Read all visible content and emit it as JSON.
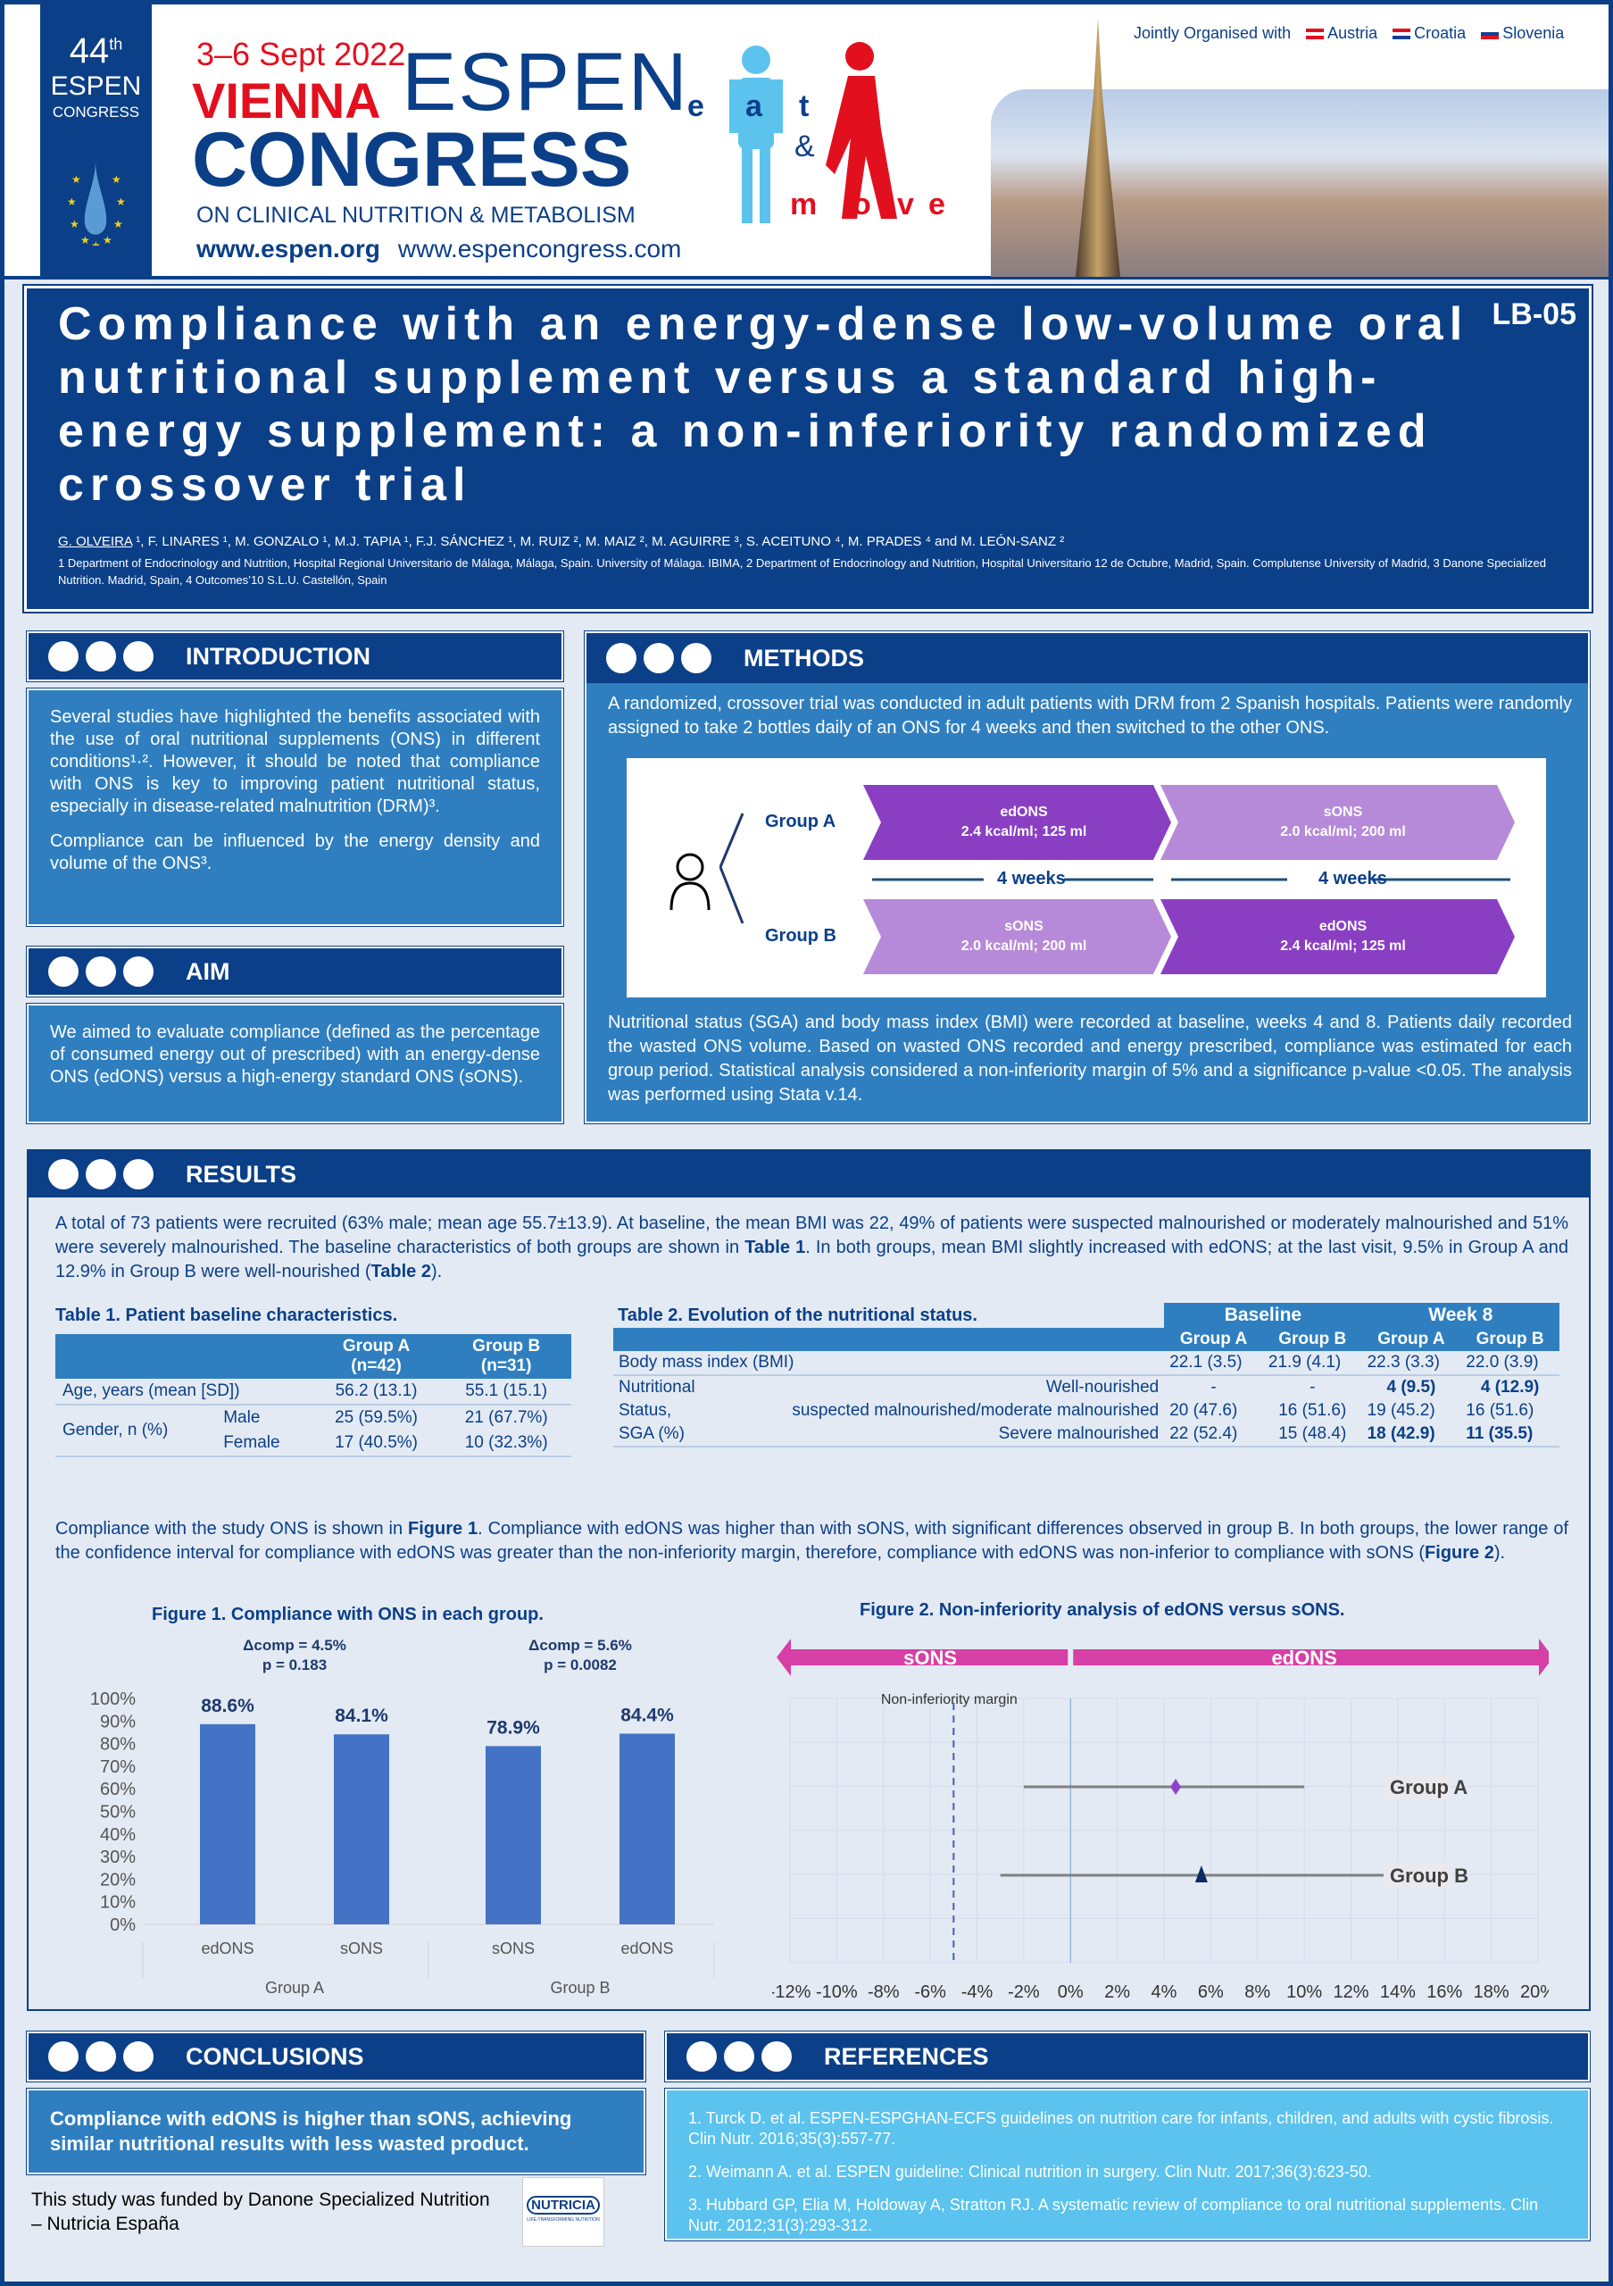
{
  "header": {
    "edition_number": "44",
    "edition_suffix": "th",
    "espen_small": "ESPEN",
    "congress_small": "CONGRESS",
    "dates": "3–6 Sept 2022",
    "city": "VIENNA",
    "espen": "ESPEN",
    "congress": "CONGRESS",
    "subtitle": "ON CLINICAL NUTRITION & METABOLISM",
    "url1": "www.espen.org",
    "url2": "www.espencongress.com",
    "jointly": "Jointly Organised with",
    "countries": [
      "Austria",
      "Croatia",
      "Slovenia"
    ],
    "eat_move_logo": "eat & move"
  },
  "title": {
    "text": "Compliance with an energy-dense low-volume oral nutritional supplement versus a standard high-energy supplement: a non-inferiority randomized crossover trial",
    "code": "LB-05",
    "authors_first": "G. OLVEIRA",
    "authors_rest": " ¹, F. LINARES ¹, M. GONZALO ¹, M.J. TAPIA ¹, F.J. SÁNCHEZ ¹, M. RUIZ ², M. MAIZ ², M. AGUIRRE ³, S. ACEITUNO ⁴, M. PRADES ⁴ and M. LEÓN-SANZ ²",
    "affiliations": "1 Department of Endocrinology and Nutrition, Hospital Regional Universitario de Málaga, Málaga, Spain. University of Málaga. IBIMA, 2 Department of Endocrinology and Nutrition, Hospital Universitario 12 de Octubre, Madrid, Spain. Complutense University of Madrid, 3 Danone Specialized Nutrition. Madrid, Spain, 4 Outcomes’10 S.L.U. Castellón, Spain"
  },
  "introduction": {
    "heading": "INTRODUCTION",
    "p1": "Several studies have highlighted the benefits associated with the use of oral nutritional supplements (ONS) in different conditions¹·². However, it should be noted that compliance with ONS is key to improving patient nutritional status, especially in disease-related malnutrition (DRM)³.",
    "p2": "Compliance can be influenced by the energy density and volume of the ONS³."
  },
  "aim": {
    "heading": "AIM",
    "text": "We aimed to evaluate compliance (defined as the percentage of consumed energy out of prescribed) with an energy-dense ONS (edONS) versus a high-energy standard ONS (sONS)."
  },
  "methods": {
    "heading": "METHODS",
    "p1": "A randomized, crossover trial was conducted in adult patients with DRM from 2 Spanish hospitals. Patients were randomly assigned to take 2 bottles daily of an ONS for 4 weeks and then switched to the other ONS.",
    "p2": "Nutritional status (SGA) and body mass index (BMI) were recorded at baseline, weeks 4 and 8. Patients daily recorded the wasted ONS volume. Based on wasted ONS recorded and energy prescribed, compliance was estimated for each group period. Statistical analysis considered a non-inferiority margin of 5% and a significance p-value <0.05. The analysis was performed using Stata v.14.",
    "diagram": {
      "group_a": "Group A",
      "group_b": "Group B",
      "weeks": "4 weeks",
      "ed_name": "edONS",
      "ed_spec": "2.4 kcal/ml; 125 ml",
      "s_name": "sONS",
      "s_spec": "2.0 kcal/ml; 200 ml"
    }
  },
  "results": {
    "heading": "RESULTS",
    "p1_a": "A total of 73 patients were recruited (63% male; mean age 55.7±13.9). At baseline, the mean BMI was 22, 49% of patients were suspected malnourished or moderately malnourished and 51% were severely malnourished. The baseline characteristics of both groups are shown in ",
    "t1ref": "Table 1",
    "p1_b": ". In both groups, mean BMI slightly increased with edONS; at the last visit, 9.5% in Group A and 12.9% in Group B were well-nourished (",
    "t2ref": "Table 2",
    "p1_c": ").",
    "p2_a": "Compliance with the study ONS is shown in ",
    "f1ref": "Figure 1",
    "p2_b": ". Compliance with edONS was higher than with sONS, with significant differences observed in group B. In both groups, the lower range of the confidence interval for compliance with edONS was greater than the non-inferiority margin, therefore, compliance with edONS was non-inferior to compliance with sONS (",
    "f2ref": "Figure 2",
    "p2_c": ")."
  },
  "table1": {
    "title": "Table 1. Patient baseline characteristics.",
    "col_a": "Group A",
    "col_a_n": "(n=42)",
    "col_b": "Group B",
    "col_b_n": "(n=31)",
    "age_label": "Age, years (mean [SD])",
    "age_a": "56.2 (13.1)",
    "age_b": "55.1 (15.1)",
    "gender_label": "Gender, n (%)",
    "male": "Male",
    "female": "Female",
    "male_a": "25 (59.5%)",
    "male_b": "21 (67.7%)",
    "female_a": "17 (40.5%)",
    "female_b": "10 (32.3%)"
  },
  "table2": {
    "title": "Table 2. Evolution of the nutritional status.",
    "baseline": "Baseline",
    "week8": "Week 8",
    "ga": "Group A",
    "gb": "Group B",
    "bmi_label": "Body mass index (BMI)",
    "bmi": [
      "22.1 (3.5)",
      "21.9 (4.1)",
      "22.3 (3.3)",
      "22.0 (3.9)"
    ],
    "ns1": "Nutritional",
    "ns2": "Status,",
    "ns3": "SGA (%)",
    "rows": [
      {
        "label": "Well-nourished",
        "v": [
          "-",
          "-",
          "4 (9.5)",
          "4 (12.9)"
        ]
      },
      {
        "label": "suspected malnourished/moderate malnourished",
        "v": [
          "20 (47.6)",
          "16 (51.6)",
          "19 (45.2)",
          "16 (51.6)"
        ]
      },
      {
        "label": "Severe malnourished",
        "v": [
          "22 (52.4)",
          "15 (48.4)",
          "18 (42.9)",
          "11 (35.5)"
        ]
      }
    ]
  },
  "chart_data": [
    {
      "type": "bar",
      "title": "Figure 1. Compliance with ONS in each group.",
      "categories": [
        "edONS",
        "sONS",
        "sONS",
        "edONS"
      ],
      "groups": [
        "Group A",
        "Group B"
      ],
      "values": [
        88.6,
        84.1,
        78.9,
        84.4
      ],
      "value_labels": [
        "88.6%",
        "84.1%",
        "78.9%",
        "84.4%"
      ],
      "ylim": [
        0,
        100
      ],
      "yticks": [
        "0%",
        "10%",
        "20%",
        "30%",
        "40%",
        "50%",
        "60%",
        "70%",
        "80%",
        "90%",
        "100%"
      ],
      "bar_color": "#4472c4",
      "annotations": [
        {
          "delta": "Δcomp = 4.5%",
          "p": "p = 0.183"
        },
        {
          "delta": "Δcomp = 5.6%",
          "p": "p = 0.0082"
        }
      ]
    },
    {
      "type": "scatter",
      "title": "Figure 2. Non-inferiority analysis of edONS versus sONS.",
      "left_label": "sONS",
      "right_label": "edONS",
      "margin_label": "Non-inferiority margin",
      "margin": -5,
      "xlim": [
        -12,
        20
      ],
      "xticks": [
        "-12%",
        "-10%",
        "-8%",
        "-6%",
        "-4%",
        "-2%",
        "0%",
        "2%",
        "4%",
        "6%",
        "8%",
        "10%",
        "12%",
        "14%",
        "16%",
        "18%",
        "20%"
      ],
      "series": [
        {
          "name": "Group A",
          "estimate": 4.5,
          "ci": [
            -2,
            10
          ],
          "marker": "diamond",
          "color": "#8e44c8"
        },
        {
          "name": "Group B",
          "estimate": 5.6,
          "ci": [
            -3,
            14
          ],
          "marker": "triangle",
          "color": "#0b2a66"
        }
      ]
    }
  ],
  "conclusions": {
    "heading": "CONCLUSIONS",
    "text": "Compliance with edONS is higher than sONS, achieving similar nutritional results with less wasted product."
  },
  "funding": {
    "text": "This study was funded by Danone Specialized Nutrition – Nutricia España",
    "logo": "NUTRICIA",
    "logo_tag": "LIFE-TRANSFORMING NUTRITION"
  },
  "references": {
    "heading": "REFERENCES",
    "items": [
      "1. Turck D. et al. ESPEN-ESPGHAN-ECFS guidelines on nutrition care for infants, children, and adults with cystic fibrosis. Clin Nutr. 2016;35(3):557-77.",
      "2. Weimann A. et al. ESPEN guideline: Clinical nutrition in surgery. Clin Nutr. 2017;36(3):623-50.",
      "3. Hubbard GP, Elia M, Holdoway A, Stratton RJ. A systematic review of compliance to oral nutritional supplements. Clin Nutr. 2012;31(3):293-312."
    ]
  }
}
